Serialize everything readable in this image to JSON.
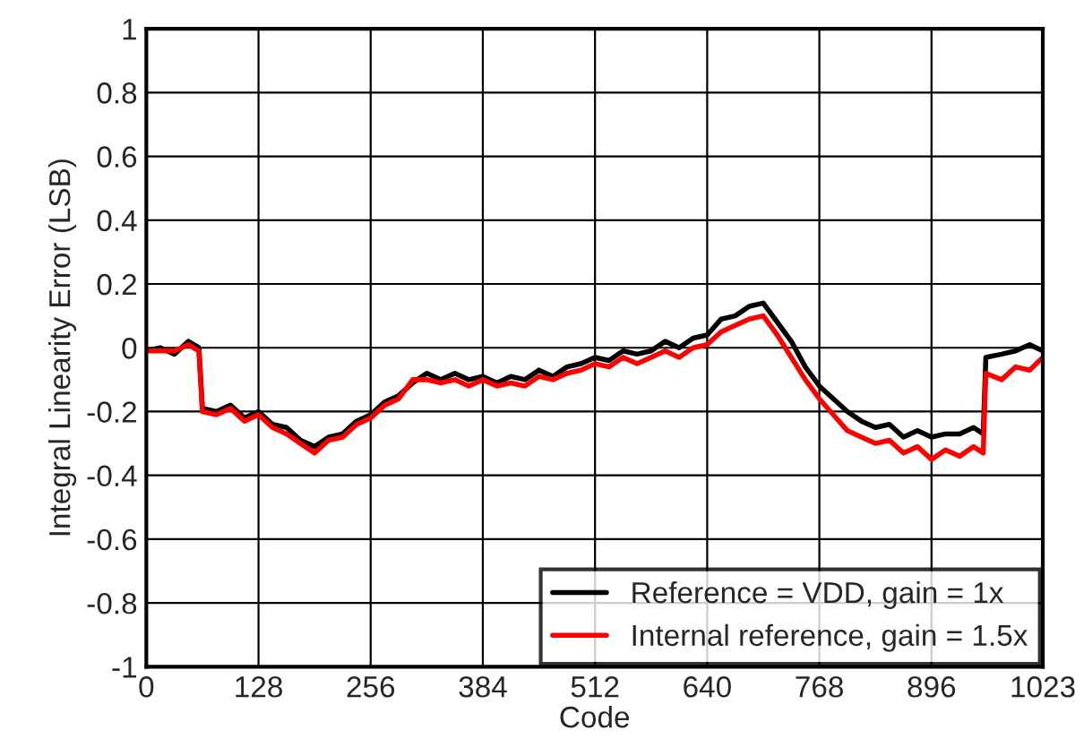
{
  "chart_data": {
    "type": "line",
    "xlabel": "Code",
    "ylabel": "Integral Linearity Error (LSB)",
    "xlim": [
      0,
      1023
    ],
    "ylim": [
      -1,
      1
    ],
    "xticks": [
      0,
      128,
      256,
      384,
      512,
      640,
      768,
      896,
      1023
    ],
    "yticks": [
      -1,
      -0.8,
      -0.6,
      -0.4,
      -0.2,
      0,
      0.2,
      0.4,
      0.6,
      0.8,
      1
    ],
    "grid": true,
    "legend": "bottom right",
    "line_style": "solid",
    "x": [
      0,
      16,
      32,
      48,
      60,
      64,
      80,
      96,
      112,
      128,
      144,
      160,
      176,
      192,
      208,
      224,
      240,
      256,
      272,
      288,
      304,
      320,
      336,
      352,
      368,
      384,
      400,
      416,
      432,
      448,
      464,
      480,
      496,
      512,
      528,
      544,
      560,
      576,
      592,
      608,
      624,
      640,
      656,
      672,
      688,
      704,
      720,
      736,
      752,
      768,
      784,
      800,
      816,
      832,
      848,
      864,
      880,
      896,
      912,
      928,
      944,
      955,
      958,
      976,
      992,
      1008,
      1023
    ],
    "series": [
      {
        "name": "Reference = VDD, gain = 1x",
        "color": "#000000",
        "values": [
          -0.01,
          0.0,
          -0.02,
          0.02,
          0.0,
          -0.19,
          -0.2,
          -0.18,
          -0.22,
          -0.2,
          -0.24,
          -0.25,
          -0.29,
          -0.31,
          -0.28,
          -0.27,
          -0.23,
          -0.21,
          -0.17,
          -0.15,
          -0.11,
          -0.08,
          -0.1,
          -0.08,
          -0.1,
          -0.09,
          -0.11,
          -0.09,
          -0.1,
          -0.07,
          -0.09,
          -0.06,
          -0.05,
          -0.03,
          -0.04,
          -0.01,
          -0.02,
          -0.01,
          0.02,
          0.0,
          0.03,
          0.04,
          0.09,
          0.1,
          0.13,
          0.14,
          0.08,
          0.02,
          -0.06,
          -0.12,
          -0.16,
          -0.2,
          -0.23,
          -0.25,
          -0.24,
          -0.28,
          -0.26,
          -0.28,
          -0.27,
          -0.27,
          -0.25,
          -0.27,
          -0.03,
          -0.02,
          -0.01,
          0.01,
          -0.01
        ]
      },
      {
        "name": "Internal reference, gain = 1.5x",
        "color": "#ff0000",
        "values": [
          -0.01,
          -0.01,
          -0.01,
          0.01,
          -0.01,
          -0.2,
          -0.21,
          -0.19,
          -0.23,
          -0.21,
          -0.25,
          -0.27,
          -0.3,
          -0.33,
          -0.29,
          -0.28,
          -0.24,
          -0.22,
          -0.18,
          -0.16,
          -0.1,
          -0.1,
          -0.11,
          -0.1,
          -0.12,
          -0.1,
          -0.12,
          -0.11,
          -0.12,
          -0.09,
          -0.1,
          -0.08,
          -0.07,
          -0.05,
          -0.06,
          -0.03,
          -0.05,
          -0.03,
          -0.01,
          -0.03,
          0.0,
          0.01,
          0.05,
          0.07,
          0.09,
          0.1,
          0.04,
          -0.03,
          -0.1,
          -0.16,
          -0.21,
          -0.26,
          -0.28,
          -0.3,
          -0.29,
          -0.33,
          -0.31,
          -0.35,
          -0.32,
          -0.34,
          -0.31,
          -0.33,
          -0.08,
          -0.1,
          -0.06,
          -0.07,
          -0.03
        ]
      }
    ]
  }
}
